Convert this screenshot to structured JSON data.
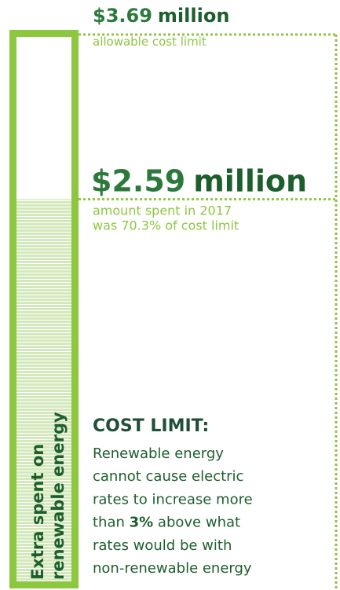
{
  "limit": {
    "amount": {
      "value": 3.69,
      "label": "$3.69"
    },
    "unit": "million",
    "caption": "allowable cost limit"
  },
  "spent": {
    "amount": {
      "value": 2.59,
      "label": "$2.59"
    },
    "unit": "million",
    "caption": [
      "amount spent in 2017",
      "was 70.3% of cost limit"
    ]
  },
  "bar_label": [
    "Extra spent on",
    "renewable energy"
  ],
  "note": {
    "title": "COST LIMIT:",
    "lines": [
      "Renewable energy",
      "cannot cause electric",
      "rates to increase more"
    ],
    "emphasis_line": {
      "before": "than ",
      "bold": "3%",
      "after": " above what"
    },
    "lines_after": [
      "rates would be with",
      "non-renewable energy"
    ]
  }
}
